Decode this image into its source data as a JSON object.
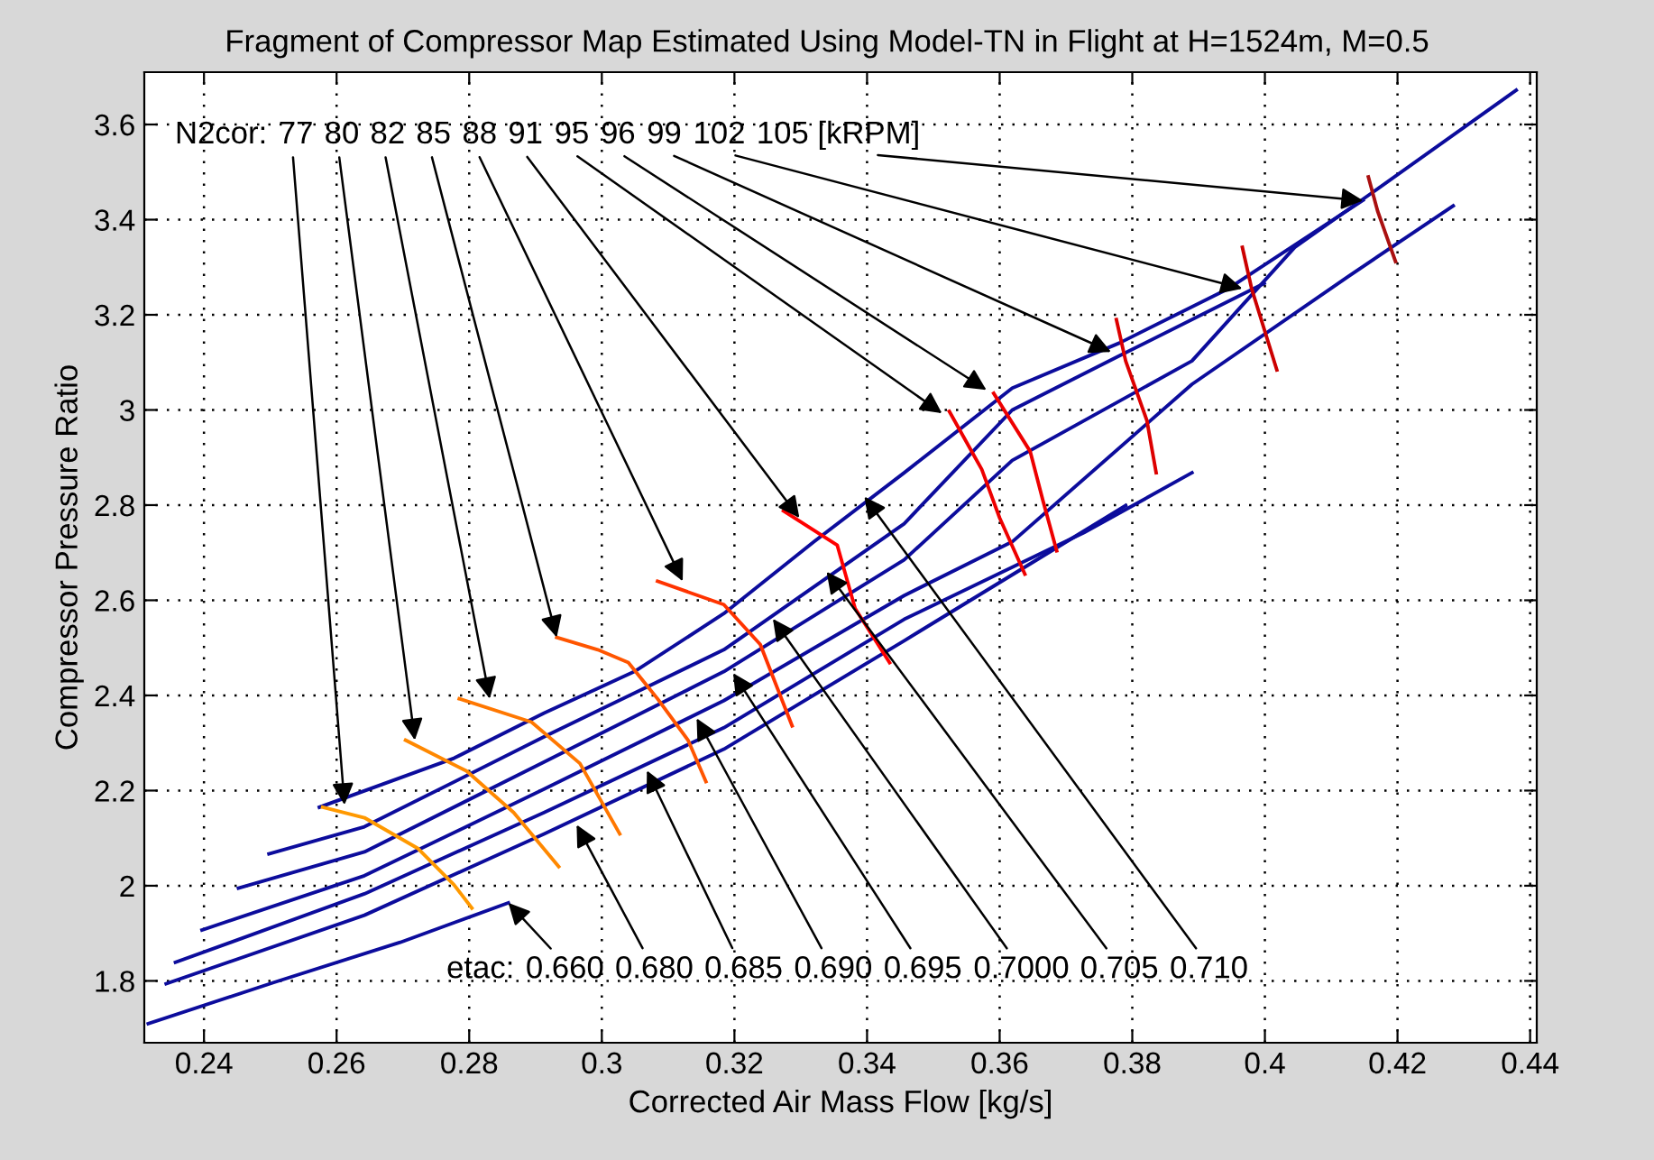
{
  "chart_data": {
    "type": "line",
    "title": "Fragment of Compressor Map Estimated Using Model-TN in Flight at H=1524m, M=0.5",
    "xlabel": "Corrected Air Mass Flow [kg/s]",
    "ylabel": "Compressor Pressure Ratio",
    "xlim": [
      0.231,
      0.441
    ],
    "ylim": [
      1.67,
      3.71
    ],
    "xticks": [
      0.24,
      0.26,
      0.28,
      0.3,
      0.32,
      0.34,
      0.36,
      0.38,
      0.4,
      0.42,
      0.44
    ],
    "yticks": [
      1.8,
      2,
      2.2,
      2.4,
      2.6,
      2.8,
      3,
      3.2,
      3.4,
      3.6
    ],
    "grid": true,
    "line_style": "solid",
    "marker": "none",
    "legend": false,
    "series": [
      {
        "color": "#0c0c9c",
        "x": [
          0.2316,
          0.2506,
          0.2696,
          0.2859
        ],
        "values": [
          1.71,
          1.797,
          1.881,
          1.964
        ]
      },
      {
        "color": "#0c0c9c",
        "x": [
          0.2343,
          0.2642,
          0.2913,
          0.3184,
          0.3456,
          0.379
        ],
        "values": [
          1.794,
          1.938,
          2.109,
          2.287,
          2.515,
          2.799
        ]
      },
      {
        "color": "#0c0c9c",
        "x": [
          0.2357,
          0.2642,
          0.2913,
          0.3184,
          0.3456,
          0.3727,
          0.389
        ],
        "values": [
          1.839,
          1.983,
          2.154,
          2.332,
          2.56,
          2.742,
          2.868
        ]
      },
      {
        "color": "#0c0c9c",
        "x": [
          0.2397,
          0.2642,
          0.2913,
          0.3184,
          0.3456,
          0.3619,
          0.389,
          0.4126,
          0.4284
        ],
        "values": [
          1.907,
          2.021,
          2.203,
          2.389,
          2.61,
          2.723,
          3.054,
          3.281,
          3.429
        ]
      },
      {
        "color": "#0c0c9c",
        "x": [
          0.2452,
          0.2642,
          0.2913,
          0.3184,
          0.3456,
          0.3619,
          0.389,
          0.4045,
          0.4161,
          0.4379
        ],
        "values": [
          1.995,
          2.071,
          2.26,
          2.45,
          2.685,
          2.894,
          3.103,
          3.342,
          3.456,
          3.672
        ]
      },
      {
        "color": "#0c0c9c",
        "x": [
          0.2498,
          0.2642,
          0.2913,
          0.3184,
          0.3456,
          0.3619,
          0.3781,
          0.3999
        ],
        "values": [
          2.067,
          2.124,
          2.313,
          2.496,
          2.761,
          3.0,
          3.114,
          3.266
        ]
      },
      {
        "color": "#0c0c9c",
        "x": [
          0.2574,
          0.2777,
          0.2913,
          0.3049,
          0.3184,
          0.332,
          0.3456,
          0.3619,
          0.3781,
          0.3945,
          0.4148
        ],
        "values": [
          2.165,
          2.268,
          2.363,
          2.45,
          2.572,
          2.723,
          2.868,
          3.046,
          3.141,
          3.255,
          3.441
        ]
      },
      {
        "color": "#ff9900",
        "x": [
          0.2579,
          0.2642,
          0.2723,
          0.2777,
          0.2804
        ],
        "values": [
          2.165,
          2.143,
          2.078,
          2.002,
          1.953
        ]
      },
      {
        "color": "#ff8800",
        "x": [
          0.2704,
          0.2796,
          0.2867,
          0.2935
        ],
        "values": [
          2.306,
          2.241,
          2.154,
          2.04
        ]
      },
      {
        "color": "#ff7700",
        "x": [
          0.2785,
          0.2894,
          0.2967,
          0.3027
        ],
        "values": [
          2.393,
          2.344,
          2.257,
          2.109
        ]
      },
      {
        "color": "#ff5500",
        "x": [
          0.2932,
          0.2994,
          0.304,
          0.3084,
          0.313,
          0.3157
        ],
        "values": [
          2.522,
          2.496,
          2.469,
          2.393,
          2.306,
          2.219
        ]
      },
      {
        "color": "#ff3300",
        "x": [
          0.3084,
          0.3184,
          0.3239,
          0.3287
        ],
        "values": [
          2.64,
          2.591,
          2.507,
          2.336
        ]
      },
      {
        "color": "#ff0000",
        "x": [
          0.3274,
          0.3355,
          0.3382,
          0.3434
        ],
        "values": [
          2.788,
          2.716,
          2.583,
          2.469
        ]
      },
      {
        "color": "#ee0000",
        "x": [
          0.3524,
          0.3573,
          0.36,
          0.3638
        ],
        "values": [
          2.997,
          2.875,
          2.773,
          2.655
        ]
      },
      {
        "color": "#ee0000",
        "x": [
          0.3591,
          0.3646,
          0.3665,
          0.3686
        ],
        "values": [
          3.035,
          2.913,
          2.811,
          2.704
        ]
      },
      {
        "color": "#dd0000",
        "x": [
          0.3776,
          0.379,
          0.3822,
          0.3836
        ],
        "values": [
          3.19,
          3.103,
          2.978,
          2.868
        ]
      },
      {
        "color": "#cc0000",
        "x": [
          0.3966,
          0.398,
          0.4018
        ],
        "values": [
          3.342,
          3.255,
          3.084
        ]
      },
      {
        "color": "#aa1010",
        "x": [
          0.4156,
          0.417,
          0.4197
        ],
        "values": [
          3.49,
          3.418,
          3.312
        ]
      }
    ],
    "annotations": [
      "N2cor:",
      {
        "text": "77",
        "x": 0.2612,
        "y": 2.17
      },
      {
        "text": "80",
        "x": 0.2718,
        "y": 2.306
      },
      {
        "text": "82",
        "x": 0.2831,
        "y": 2.393
      },
      {
        "text": "85",
        "x": 0.2932,
        "y": 2.522
      },
      {
        "text": "88",
        "x": 0.3122,
        "y": 2.64
      },
      {
        "text": "91",
        "x": 0.3298,
        "y": 2.773
      },
      {
        "text": "95",
        "x": 0.3513,
        "y": 2.993
      },
      {
        "text": "96",
        "x": 0.358,
        "y": 3.042
      },
      {
        "text": "99",
        "x": 0.3768,
        "y": 3.122
      },
      {
        "text": "102",
        "x": 0.3966,
        "y": 3.255
      },
      {
        "text": "105 [kRPM]",
        "x": 0.4148,
        "y": 3.44
      },
      "etac:",
      {
        "text": "0.660",
        "x": 0.2859,
        "y": 1.964
      },
      {
        "text": "0.680",
        "x": 0.2962,
        "y": 2.128
      },
      {
        "text": "0.685",
        "x": 0.3068,
        "y": 2.242
      },
      {
        "text": "0.690",
        "x": 0.3143,
        "y": 2.352
      },
      {
        "text": "0.695",
        "x": 0.3198,
        "y": 2.447
      },
      {
        "text": "0.7000",
        "x": 0.3258,
        "y": 2.561
      },
      {
        "text": "0.705",
        "x": 0.3339,
        "y": 2.66
      },
      {
        "text": "0.710",
        "x": 0.3396,
        "y": 2.818
      }
    ]
  }
}
